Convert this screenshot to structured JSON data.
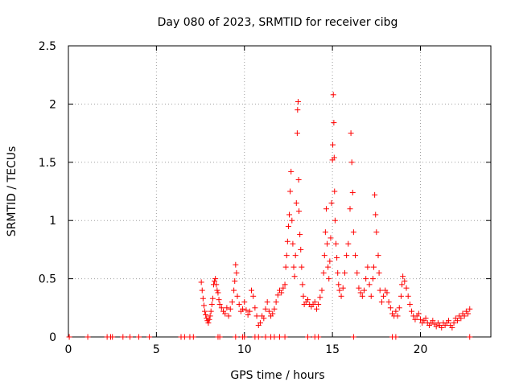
{
  "chart_data": {
    "type": "scatter",
    "title": "Day 080 of 2023, SRMTID for receiver cibg",
    "xlabel": "GPS time / hours",
    "ylabel": "SRMTID / TECUs",
    "xlim": [
      0,
      24
    ],
    "ylim": [
      0,
      2.5
    ],
    "grid": true,
    "marker": "+",
    "color": "#ff0000",
    "x_ticks": [
      {
        "value": 0,
        "label": "0"
      },
      {
        "value": 5,
        "label": "5"
      },
      {
        "value": 10,
        "label": "10"
      },
      {
        "value": 15,
        "label": "15"
      },
      {
        "value": 20,
        "label": "20"
      }
    ],
    "y_ticks": [
      {
        "value": 0,
        "label": "0"
      },
      {
        "value": 0.5,
        "label": "0.5"
      },
      {
        "value": 1,
        "label": "1"
      },
      {
        "value": 1.5,
        "label": "1.5"
      },
      {
        "value": 2,
        "label": "2"
      },
      {
        "value": 2.5,
        "label": "2.5"
      }
    ],
    "series": [
      {
        "name": "SRMTID",
        "points": [
          [
            0.05,
            0
          ],
          [
            1.1,
            0
          ],
          [
            2.2,
            0
          ],
          [
            2.4,
            0
          ],
          [
            2.5,
            0
          ],
          [
            3.1,
            0
          ],
          [
            3.5,
            0
          ],
          [
            4.0,
            0
          ],
          [
            4.6,
            0
          ],
          [
            6.4,
            0
          ],
          [
            6.6,
            0
          ],
          [
            6.9,
            0
          ],
          [
            7.1,
            0
          ],
          [
            8.5,
            0
          ],
          [
            8.6,
            0
          ],
          [
            9.5,
            0
          ],
          [
            9.9,
            0
          ],
          [
            10.0,
            0
          ],
          [
            10.6,
            0
          ],
          [
            10.8,
            0
          ],
          [
            11.2,
            0
          ],
          [
            11.5,
            0
          ],
          [
            11.7,
            0
          ],
          [
            12.0,
            0
          ],
          [
            12.3,
            0
          ],
          [
            13.6,
            0
          ],
          [
            14.0,
            0
          ],
          [
            14.2,
            0
          ],
          [
            16.2,
            0
          ],
          [
            18.4,
            0
          ],
          [
            18.6,
            0
          ],
          [
            22.8,
            0
          ],
          [
            7.55,
            0.47
          ],
          [
            7.6,
            0.4
          ],
          [
            7.65,
            0.33
          ],
          [
            7.7,
            0.27
          ],
          [
            7.75,
            0.22
          ],
          [
            7.8,
            0.19
          ],
          [
            7.85,
            0.16
          ],
          [
            7.9,
            0.14
          ],
          [
            7.95,
            0.12
          ],
          [
            8.0,
            0.15
          ],
          [
            8.05,
            0.18
          ],
          [
            8.1,
            0.22
          ],
          [
            8.15,
            0.28
          ],
          [
            8.2,
            0.33
          ],
          [
            8.25,
            0.45
          ],
          [
            8.3,
            0.48
          ],
          [
            8.35,
            0.5
          ],
          [
            8.4,
            0.45
          ],
          [
            8.45,
            0.4
          ],
          [
            8.5,
            0.38
          ],
          [
            8.55,
            0.32
          ],
          [
            8.6,
            0.28
          ],
          [
            8.7,
            0.25
          ],
          [
            8.8,
            0.22
          ],
          [
            8.9,
            0.2
          ],
          [
            9.0,
            0.25
          ],
          [
            9.1,
            0.18
          ],
          [
            9.2,
            0.24
          ],
          [
            9.3,
            0.3
          ],
          [
            9.4,
            0.4
          ],
          [
            9.45,
            0.48
          ],
          [
            9.5,
            0.62
          ],
          [
            9.55,
            0.55
          ],
          [
            9.6,
            0.35
          ],
          [
            9.7,
            0.28
          ],
          [
            9.8,
            0.22
          ],
          [
            9.9,
            0.24
          ],
          [
            10.0,
            0.3
          ],
          [
            10.1,
            0.23
          ],
          [
            10.2,
            0.19
          ],
          [
            10.3,
            0.22
          ],
          [
            10.4,
            0.4
          ],
          [
            10.5,
            0.35
          ],
          [
            10.6,
            0.25
          ],
          [
            10.7,
            0.18
          ],
          [
            10.8,
            0.1
          ],
          [
            10.9,
            0.12
          ],
          [
            11.0,
            0.18
          ],
          [
            11.1,
            0.16
          ],
          [
            11.2,
            0.24
          ],
          [
            11.3,
            0.3
          ],
          [
            11.4,
            0.22
          ],
          [
            11.5,
            0.18
          ],
          [
            11.6,
            0.2
          ],
          [
            11.7,
            0.24
          ],
          [
            11.8,
            0.3
          ],
          [
            11.9,
            0.36
          ],
          [
            12.0,
            0.4
          ],
          [
            12.1,
            0.38
          ],
          [
            12.2,
            0.42
          ],
          [
            12.3,
            0.45
          ],
          [
            12.35,
            0.6
          ],
          [
            12.4,
            0.7
          ],
          [
            12.45,
            0.82
          ],
          [
            12.5,
            0.95
          ],
          [
            12.55,
            1.05
          ],
          [
            12.6,
            1.25
          ],
          [
            12.65,
            1.42
          ],
          [
            12.7,
            1.0
          ],
          [
            12.75,
            0.8
          ],
          [
            12.8,
            0.6
          ],
          [
            12.85,
            0.52
          ],
          [
            12.9,
            0.7
          ],
          [
            12.95,
            1.15
          ],
          [
            13.0,
            1.75
          ],
          [
            13.02,
            1.95
          ],
          [
            13.05,
            2.02
          ],
          [
            13.08,
            1.35
          ],
          [
            13.1,
            1.08
          ],
          [
            13.15,
            0.88
          ],
          [
            13.2,
            0.75
          ],
          [
            13.25,
            0.6
          ],
          [
            13.3,
            0.45
          ],
          [
            13.35,
            0.35
          ],
          [
            13.4,
            0.28
          ],
          [
            13.5,
            0.3
          ],
          [
            13.6,
            0.32
          ],
          [
            13.7,
            0.28
          ],
          [
            13.8,
            0.26
          ],
          [
            13.9,
            0.28
          ],
          [
            14.0,
            0.3
          ],
          [
            14.1,
            0.24
          ],
          [
            14.2,
            0.28
          ],
          [
            14.3,
            0.34
          ],
          [
            14.4,
            0.4
          ],
          [
            14.5,
            0.55
          ],
          [
            14.55,
            0.7
          ],
          [
            14.6,
            0.9
          ],
          [
            14.65,
            1.1
          ],
          [
            14.7,
            0.8
          ],
          [
            14.75,
            0.6
          ],
          [
            14.8,
            0.5
          ],
          [
            14.85,
            0.65
          ],
          [
            14.9,
            0.85
          ],
          [
            14.95,
            1.15
          ],
          [
            15.0,
            1.52
          ],
          [
            15.02,
            1.65
          ],
          [
            15.05,
            2.08
          ],
          [
            15.08,
            1.84
          ],
          [
            15.1,
            1.54
          ],
          [
            15.12,
            1.25
          ],
          [
            15.15,
            1.0
          ],
          [
            15.2,
            0.8
          ],
          [
            15.25,
            0.68
          ],
          [
            15.3,
            0.55
          ],
          [
            15.35,
            0.45
          ],
          [
            15.4,
            0.4
          ],
          [
            15.5,
            0.35
          ],
          [
            15.6,
            0.42
          ],
          [
            15.7,
            0.55
          ],
          [
            15.8,
            0.7
          ],
          [
            15.9,
            0.8
          ],
          [
            16.0,
            1.1
          ],
          [
            16.05,
            1.75
          ],
          [
            16.1,
            1.5
          ],
          [
            16.15,
            1.24
          ],
          [
            16.2,
            0.9
          ],
          [
            16.3,
            0.7
          ],
          [
            16.4,
            0.55
          ],
          [
            16.5,
            0.42
          ],
          [
            16.6,
            0.38
          ],
          [
            16.7,
            0.35
          ],
          [
            16.8,
            0.4
          ],
          [
            16.9,
            0.5
          ],
          [
            17.0,
            0.6
          ],
          [
            17.1,
            0.45
          ],
          [
            17.2,
            0.35
          ],
          [
            17.3,
            0.5
          ],
          [
            17.35,
            0.6
          ],
          [
            17.4,
            1.22
          ],
          [
            17.45,
            1.05
          ],
          [
            17.5,
            0.9
          ],
          [
            17.6,
            0.7
          ],
          [
            17.65,
            0.55
          ],
          [
            17.7,
            0.4
          ],
          [
            17.8,
            0.3
          ],
          [
            17.9,
            0.35
          ],
          [
            18.0,
            0.4
          ],
          [
            18.1,
            0.38
          ],
          [
            18.2,
            0.3
          ],
          [
            18.3,
            0.25
          ],
          [
            18.4,
            0.2
          ],
          [
            18.5,
            0.18
          ],
          [
            18.6,
            0.22
          ],
          [
            18.7,
            0.18
          ],
          [
            18.8,
            0.25
          ],
          [
            18.9,
            0.35
          ],
          [
            18.95,
            0.45
          ],
          [
            19.0,
            0.52
          ],
          [
            19.1,
            0.48
          ],
          [
            19.2,
            0.42
          ],
          [
            19.3,
            0.35
          ],
          [
            19.4,
            0.28
          ],
          [
            19.5,
            0.22
          ],
          [
            19.6,
            0.18
          ],
          [
            19.7,
            0.15
          ],
          [
            19.8,
            0.18
          ],
          [
            19.9,
            0.2
          ],
          [
            20.0,
            0.15
          ],
          [
            20.1,
            0.12
          ],
          [
            20.2,
            0.14
          ],
          [
            20.3,
            0.16
          ],
          [
            20.4,
            0.12
          ],
          [
            20.5,
            0.1
          ],
          [
            20.6,
            0.12
          ],
          [
            20.7,
            0.14
          ],
          [
            20.8,
            0.11
          ],
          [
            20.9,
            0.09
          ],
          [
            21.0,
            0.12
          ],
          [
            21.1,
            0.1
          ],
          [
            21.2,
            0.08
          ],
          [
            21.3,
            0.12
          ],
          [
            21.4,
            0.1
          ],
          [
            21.5,
            0.12
          ],
          [
            21.6,
            0.14
          ],
          [
            21.7,
            0.1
          ],
          [
            21.8,
            0.08
          ],
          [
            21.9,
            0.12
          ],
          [
            22.0,
            0.16
          ],
          [
            22.1,
            0.14
          ],
          [
            22.2,
            0.18
          ],
          [
            22.3,
            0.16
          ],
          [
            22.4,
            0.2
          ],
          [
            22.5,
            0.18
          ],
          [
            22.6,
            0.22
          ],
          [
            22.7,
            0.2
          ],
          [
            22.8,
            0.24
          ]
        ]
      }
    ]
  }
}
